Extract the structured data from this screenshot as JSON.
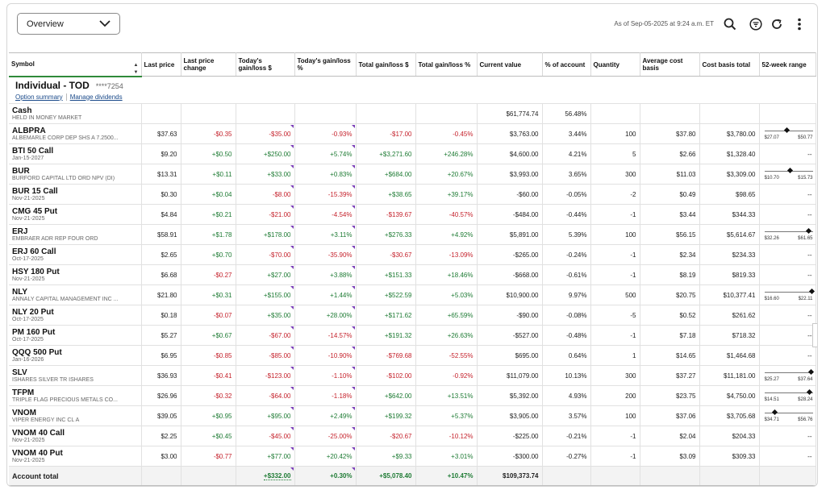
{
  "toolbar": {
    "view_label": "Overview",
    "as_of": "As of Sep-05-2025 at 9:24 a.m. ET"
  },
  "columns": [
    "Symbol",
    "Last price",
    "Last price change",
    "Today's gain/loss $",
    "Today's gain/loss %",
    "Total gain/loss $",
    "Total gain/loss %",
    "Current value",
    "% of account",
    "Quantity",
    "Average cost basis",
    "Cost basis total",
    "52-week range"
  ],
  "account": {
    "name": "Individual - TOD",
    "number": "****7254",
    "link_option_summary": "Option summary",
    "link_manage_dividends": "Manage dividends"
  },
  "cash": {
    "symbol": "Cash",
    "desc": "HELD IN MONEY MARKET",
    "value": "$61,774.74",
    "pct": "56.48%"
  },
  "rows": [
    {
      "sym": "ALBPRA",
      "desc": "ALBEMARLE CORP DEP SHS A 7.2500...",
      "last": "$37.63",
      "chg": "-$0.35",
      "tdd": "-$35.00",
      "tdp": "-0.93%",
      "tgd": "-$17.00",
      "tgp": "-0.45%",
      "val": "$3,763.00",
      "pct": "3.44%",
      "qty": "100",
      "avg": "$37.80",
      "cb": "$3,780.00",
      "rlo": "$27.07",
      "rhi": "$50.77",
      "rpos": 0.45
    },
    {
      "sym": "BTI 50 Call",
      "desc": "Jan-15-2027",
      "last": "$9.20",
      "chg": "+$0.50",
      "tdd": "+$250.00",
      "tdp": "+5.74%",
      "tgd": "+$3,271.60",
      "tgp": "+246.28%",
      "val": "$4,600.00",
      "pct": "4.21%",
      "qty": "5",
      "avg": "$2.66",
      "cb": "$1,328.40",
      "range": "--"
    },
    {
      "sym": "BUR",
      "desc": "BURFORD CAPITAL LTD ORD NPV (DI)",
      "last": "$13.31",
      "chg": "+$0.11",
      "tdd": "+$33.00",
      "tdp": "+0.83%",
      "tgd": "+$684.00",
      "tgp": "+20.67%",
      "val": "$3,993.00",
      "pct": "3.65%",
      "qty": "300",
      "avg": "$11.03",
      "cb": "$3,309.00",
      "rlo": "$10.70",
      "rhi": "$15.73",
      "rpos": 0.52
    },
    {
      "sym": "BUR 15 Call",
      "desc": "Nov-21-2025",
      "last": "$0.30",
      "chg": "+$0.04",
      "tdd": "-$8.00",
      "tdp": "-15.39%",
      "tgd": "+$38.65",
      "tgp": "+39.17%",
      "val": "-$60.00",
      "pct": "-0.05%",
      "qty": "-2",
      "avg": "$0.49",
      "cb": "$98.65",
      "range": "--"
    },
    {
      "sym": "CMG 45 Put",
      "desc": "Nov-21-2025",
      "last": "$4.84",
      "chg": "+$0.21",
      "tdd": "-$21.00",
      "tdp": "-4.54%",
      "tgd": "-$139.67",
      "tgp": "-40.57%",
      "val": "-$484.00",
      "pct": "-0.44%",
      "qty": "-1",
      "avg": "$3.44",
      "cb": "$344.33",
      "range": "--"
    },
    {
      "sym": "ERJ",
      "desc": "EMBRAER ADR REP FOUR ORD",
      "last": "$58.91",
      "chg": "+$1.78",
      "tdd": "+$178.00",
      "tdp": "+3.11%",
      "tgd": "+$276.33",
      "tgp": "+4.92%",
      "val": "$5,891.00",
      "pct": "5.39%",
      "qty": "100",
      "avg": "$56.15",
      "cb": "$5,614.67",
      "rlo": "$32.26",
      "rhi": "$61.65",
      "rpos": 0.91
    },
    {
      "sym": "ERJ 60 Call",
      "desc": "Oct-17-2025",
      "last": "$2.65",
      "chg": "+$0.70",
      "tdd": "-$70.00",
      "tdp": "-35.90%",
      "tgd": "-$30.67",
      "tgp": "-13.09%",
      "val": "-$265.00",
      "pct": "-0.24%",
      "qty": "-1",
      "avg": "$2.34",
      "cb": "$234.33",
      "range": "--"
    },
    {
      "sym": "HSY 180 Put",
      "desc": "Nov-21-2025",
      "last": "$6.68",
      "chg": "-$0.27",
      "tdd": "+$27.00",
      "tdp": "+3.88%",
      "tgd": "+$151.33",
      "tgp": "+18.46%",
      "val": "-$668.00",
      "pct": "-0.61%",
      "qty": "-1",
      "avg": "$8.19",
      "cb": "$819.33",
      "range": "--"
    },
    {
      "sym": "NLY",
      "desc": "ANNALY CAPITAL MANAGEMENT INC ...",
      "last": "$21.80",
      "chg": "+$0.31",
      "tdd": "+$155.00",
      "tdp": "+1.44%",
      "tgd": "+$522.59",
      "tgp": "+5.03%",
      "val": "$10,900.00",
      "pct": "9.97%",
      "qty": "500",
      "avg": "$20.75",
      "cb": "$10,377.41",
      "rlo": "$16.60",
      "rhi": "$22.11",
      "rpos": 0.98
    },
    {
      "sym": "NLY 20 Put",
      "desc": "Oct-17-2025",
      "last": "$0.18",
      "chg": "-$0.07",
      "tdd": "+$35.00",
      "tdp": "+28.00%",
      "tgd": "+$171.62",
      "tgp": "+65.59%",
      "val": "-$90.00",
      "pct": "-0.08%",
      "qty": "-5",
      "avg": "$0.52",
      "cb": "$261.62",
      "range": "--"
    },
    {
      "sym": "PM 160 Put",
      "desc": "Oct-17-2025",
      "last": "$5.27",
      "chg": "+$0.67",
      "tdd": "-$67.00",
      "tdp": "-14.57%",
      "tgd": "+$191.32",
      "tgp": "+26.63%",
      "val": "-$527.00",
      "pct": "-0.48%",
      "qty": "-1",
      "avg": "$7.18",
      "cb": "$718.32",
      "range": "--"
    },
    {
      "sym": "QQQ 500 Put",
      "desc": "Jan-16-2026",
      "last": "$6.95",
      "chg": "-$0.85",
      "tdd": "-$85.00",
      "tdp": "-10.90%",
      "tgd": "-$769.68",
      "tgp": "-52.55%",
      "val": "$695.00",
      "pct": "0.64%",
      "qty": "1",
      "avg": "$14.65",
      "cb": "$1,464.68",
      "range": "--"
    },
    {
      "sym": "SLV",
      "desc": "ISHARES SILVER TR ISHARES",
      "last": "$36.93",
      "chg": "-$0.41",
      "tdd": "-$123.00",
      "tdp": "-1.10%",
      "tgd": "-$102.00",
      "tgp": "-0.92%",
      "val": "$11,079.00",
      "pct": "10.13%",
      "qty": "300",
      "avg": "$37.27",
      "cb": "$11,181.00",
      "rlo": "$25.27",
      "rhi": "$37.64",
      "rpos": 0.95
    },
    {
      "sym": "TFPM",
      "desc": "TRIPLE FLAG PRECIOUS METALS CO...",
      "last": "$26.96",
      "chg": "-$0.32",
      "tdd": "-$64.00",
      "tdp": "-1.18%",
      "tgd": "+$642.00",
      "tgp": "+13.51%",
      "val": "$5,392.00",
      "pct": "4.93%",
      "qty": "200",
      "avg": "$23.75",
      "cb": "$4,750.00",
      "rlo": "$14.51",
      "rhi": "$28.24",
      "rpos": 0.93
    },
    {
      "sym": "VNOM",
      "desc": "VIPER ENERGY INC CL A",
      "last": "$39.05",
      "chg": "+$0.95",
      "tdd": "+$95.00",
      "tdp": "+2.49%",
      "tgd": "+$199.32",
      "tgp": "+5.37%",
      "val": "$3,905.00",
      "pct": "3.57%",
      "qty": "100",
      "avg": "$37.06",
      "cb": "$3,705.68",
      "rlo": "$34.71",
      "rhi": "$56.76",
      "rpos": 0.2
    },
    {
      "sym": "VNOM 40 Call",
      "desc": "Nov-21-2025",
      "last": "$2.25",
      "chg": "+$0.45",
      "tdd": "-$45.00",
      "tdp": "-25.00%",
      "tgd": "-$20.67",
      "tgp": "-10.12%",
      "val": "-$225.00",
      "pct": "-0.21%",
      "qty": "-1",
      "avg": "$2.04",
      "cb": "$204.33",
      "range": "--"
    },
    {
      "sym": "VNOM 40 Put",
      "desc": "Nov-21-2025",
      "last": "$3.00",
      "chg": "-$0.77",
      "tdd": "+$77.00",
      "tdp": "+20.42%",
      "tgd": "+$9.33",
      "tgp": "+3.01%",
      "val": "-$300.00",
      "pct": "-0.27%",
      "qty": "-1",
      "avg": "$3.09",
      "cb": "$309.33",
      "range": "--"
    }
  ],
  "total": {
    "label": "Account total",
    "tdd": "+$332.00",
    "tdp": "+0.30%",
    "tgd": "+$5,078.40",
    "tgp": "+10.47%",
    "val": "$109,373.74"
  },
  "colors": {
    "positive": "#1e7b34",
    "negative": "#c5222c",
    "flag": "#7b3fb7",
    "sort_underline": "#2f8a3a"
  },
  "icons": [
    "chevron-down-icon",
    "search-icon",
    "filter-icon",
    "refresh-icon",
    "more-vertical-icon",
    "sort-icon",
    "diamond-marker-icon"
  ]
}
